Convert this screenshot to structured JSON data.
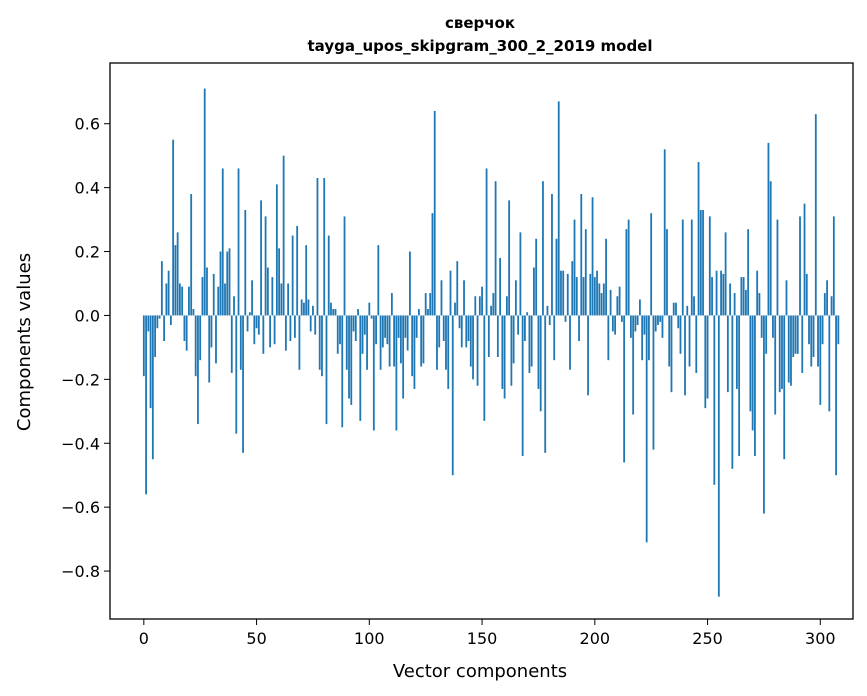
{
  "chart_data": {
    "type": "bar",
    "title": "сверчок",
    "subtitle": "tayga_upos_skipgram_300_2_2019 model",
    "xlabel": "Vector components",
    "ylabel": "Components values",
    "xlim": [
      -15,
      314.5
    ],
    "ylim": [
      -0.95,
      0.79
    ],
    "xticks": [
      0,
      50,
      100,
      150,
      200,
      250,
      300
    ],
    "xtick_labels": [
      "0",
      "50",
      "100",
      "150",
      "200",
      "250",
      "300"
    ],
    "yticks": [
      -0.8,
      -0.6,
      -0.4,
      -0.2,
      0.0,
      0.2,
      0.4,
      0.6
    ],
    "ytick_labels": [
      "−0.8",
      "−0.6",
      "−0.4",
      "−0.2",
      "0.0",
      "0.2",
      "0.4",
      "0.6"
    ],
    "bar_color": "#1f77b4",
    "values": [
      -0.19,
      -0.56,
      -0.05,
      -0.29,
      -0.45,
      -0.13,
      -0.04,
      -0.01,
      0.17,
      -0.08,
      0.1,
      0.14,
      -0.03,
      0.55,
      0.22,
      0.26,
      0.1,
      0.09,
      -0.08,
      -0.11,
      0.09,
      0.38,
      0.02,
      -0.19,
      -0.34,
      -0.14,
      0.12,
      0.71,
      0.15,
      -0.21,
      -0.1,
      0.13,
      -0.15,
      0.09,
      0.2,
      0.46,
      0.1,
      0.2,
      0.21,
      -0.18,
      0.06,
      -0.37,
      0.46,
      -0.17,
      -0.43,
      0.33,
      -0.05,
      0.01,
      0.11,
      -0.09,
      -0.04,
      -0.06,
      0.36,
      -0.12,
      0.31,
      0.15,
      -0.1,
      0.12,
      -0.09,
      0.41,
      0.21,
      0.1,
      0.5,
      -0.11,
      0.1,
      -0.08,
      0.25,
      -0.07,
      0.28,
      -0.17,
      0.05,
      0.04,
      0.22,
      0.05,
      -0.05,
      0.03,
      -0.06,
      0.43,
      -0.17,
      -0.19,
      0.43,
      -0.34,
      0.25,
      0.04,
      0.02,
      0.02,
      -0.12,
      -0.09,
      -0.35,
      0.31,
      -0.17,
      -0.26,
      -0.28,
      -0.05,
      -0.08,
      0.02,
      -0.33,
      -0.12,
      -0.06,
      -0.17,
      0.04,
      -0.01,
      -0.36,
      -0.09,
      0.22,
      -0.17,
      -0.1,
      -0.07,
      -0.09,
      -0.16,
      0.07,
      -0.16,
      -0.36,
      -0.07,
      -0.15,
      -0.26,
      -0.07,
      -0.11,
      0.2,
      -0.19,
      -0.23,
      -0.07,
      0.02,
      -0.16,
      -0.15,
      0.07,
      0.02,
      0.07,
      0.32,
      0.64,
      -0.17,
      -0.1,
      0.11,
      -0.08,
      -0.17,
      -0.23,
      0.14,
      -0.5,
      0.04,
      0.17,
      -0.04,
      -0.1,
      0.11,
      -0.1,
      -0.08,
      -0.16,
      -0.2,
      0.06,
      -0.22,
      0.06,
      0.09,
      -0.33,
      0.46,
      -0.13,
      0.03,
      0.07,
      0.42,
      -0.13,
      0.18,
      -0.23,
      -0.26,
      0.06,
      0.36,
      -0.22,
      -0.15,
      0.11,
      -0.06,
      0.26,
      -0.44,
      -0.08,
      0.01,
      -0.18,
      -0.16,
      0.15,
      0.24,
      -0.23,
      -0.3,
      0.42,
      -0.43,
      0.03,
      -0.03,
      0.38,
      -0.14,
      0.24,
      0.67,
      0.14,
      0.14,
      -0.02,
      0.13,
      -0.17,
      0.17,
      0.3,
      0.12,
      -0.08,
      0.38,
      0.12,
      0.27,
      -0.25,
      0.13,
      0.37,
      0.12,
      0.14,
      0.1,
      0.07,
      0.1,
      0.24,
      -0.14,
      0.08,
      -0.05,
      -0.06,
      0.06,
      0.09,
      -0.02,
      -0.46,
      0.27,
      0.3,
      -0.07,
      -0.31,
      -0.05,
      -0.03,
      0.05,
      -0.14,
      -0.06,
      -0.71,
      -0.14,
      0.32,
      -0.42,
      -0.05,
      -0.03,
      -0.02,
      -0.07,
      0.52,
      0.27,
      -0.16,
      -0.24,
      0.04,
      0.04,
      -0.04,
      -0.12,
      0.3,
      -0.25,
      0.03,
      -0.16,
      0.3,
      0.06,
      -0.18,
      0.48,
      0.33,
      0.33,
      -0.29,
      -0.26,
      0.31,
      0.12,
      -0.53,
      0.14,
      -0.88,
      0.14,
      0.13,
      0.26,
      -0.24,
      0.1,
      -0.48,
      0.07,
      -0.23,
      -0.44,
      0.12,
      0.12,
      0.08,
      0.27,
      -0.3,
      -0.36,
      -0.44,
      0.14,
      0.07,
      -0.07,
      -0.62,
      -0.12,
      0.54,
      0.42,
      -0.07,
      -0.31,
      0.3,
      -0.24,
      -0.23,
      -0.45,
      0.11,
      -0.21,
      -0.22,
      -0.13,
      -0.12,
      -0.12,
      0.31,
      -0.18,
      0.35,
      0.13,
      -0.09,
      -0.16,
      -0.13,
      0.63,
      -0.16,
      -0.28,
      -0.09,
      0.07,
      0.11,
      -0.3,
      0.06,
      0.31,
      -0.5,
      -0.09
    ]
  }
}
